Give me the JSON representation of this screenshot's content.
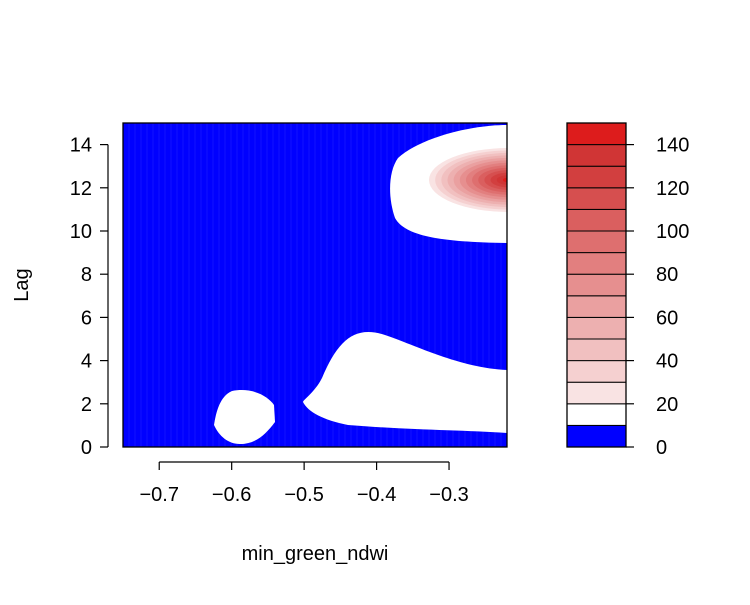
{
  "chart_data": {
    "type": "heatmap",
    "title": "",
    "xlabel": "min_green_ndwi",
    "ylabel": "Lag",
    "xlim": [
      -0.75,
      -0.22
    ],
    "ylim": [
      0,
      15
    ],
    "x_ticks": [
      {
        "value": -0.7,
        "label": "−0.7"
      },
      {
        "value": -0.6,
        "label": "−0.6"
      },
      {
        "value": -0.5,
        "label": "−0.5"
      },
      {
        "value": -0.4,
        "label": "−0.4"
      },
      {
        "value": -0.3,
        "label": "−0.3"
      }
    ],
    "y_ticks": [
      {
        "value": 0,
        "label": "0"
      },
      {
        "value": 2,
        "label": "2"
      },
      {
        "value": 4,
        "label": "4"
      },
      {
        "value": 6,
        "label": "6"
      },
      {
        "value": 8,
        "label": "8"
      },
      {
        "value": 10,
        "label": "10"
      },
      {
        "value": 12,
        "label": "12"
      },
      {
        "value": 14,
        "label": "14"
      }
    ],
    "colorbar": {
      "range": [
        0,
        150
      ],
      "ticks": [
        {
          "value": 0,
          "label": "0"
        },
        {
          "value": 20,
          "label": "20"
        },
        {
          "value": 40,
          "label": "40"
        },
        {
          "value": 60,
          "label": "60"
        },
        {
          "value": 80,
          "label": "80"
        },
        {
          "value": 100,
          "label": "100"
        },
        {
          "value": 120,
          "label": "120"
        },
        {
          "value": 140,
          "label": "140"
        }
      ],
      "levels": [
        {
          "from": 0,
          "to": 10,
          "color": "#0000ff"
        },
        {
          "from": 10,
          "to": 20,
          "color": "#ffffff"
        },
        {
          "from": 20,
          "to": 30,
          "color": "#f9e3e3"
        },
        {
          "from": 30,
          "to": 40,
          "color": "#f5d0d0"
        },
        {
          "from": 40,
          "to": 50,
          "color": "#f1c0c0"
        },
        {
          "from": 50,
          "to": 60,
          "color": "#edb0b0"
        },
        {
          "from": 60,
          "to": 70,
          "color": "#eaa0a0"
        },
        {
          "from": 70,
          "to": 80,
          "color": "#e68f8f"
        },
        {
          "from": 80,
          "to": 90,
          "color": "#e27f7f"
        },
        {
          "from": 90,
          "to": 100,
          "color": "#de6f6f"
        },
        {
          "from": 100,
          "to": 110,
          "color": "#da5f5f"
        },
        {
          "from": 110,
          "to": 120,
          "color": "#d64f4f"
        },
        {
          "from": 120,
          "to": 130,
          "color": "#d23f3f"
        },
        {
          "from": 130,
          "to": 140,
          "color": "#d03535"
        },
        {
          "from": 140,
          "to": 150,
          "color": "#dd1c1c"
        }
      ]
    },
    "regions": [
      {
        "level_range": [
          0,
          10
        ],
        "description": "background"
      },
      {
        "level_range": [
          10,
          20
        ],
        "x_range": [
          -0.38,
          -0.22
        ],
        "y_range": [
          9.5,
          14.8
        ]
      },
      {
        "level_range": [
          10,
          20
        ],
        "x_range": [
          -0.5,
          -0.22
        ],
        "y_range": [
          0.7,
          5.3
        ]
      },
      {
        "level_range": [
          10,
          20
        ],
        "x_range": [
          -0.63,
          -0.54
        ],
        "y_range": [
          0,
          2.7
        ]
      },
      {
        "level_range": [
          140,
          150
        ],
        "peak_x": -0.22,
        "peak_y": 12.6
      }
    ]
  }
}
